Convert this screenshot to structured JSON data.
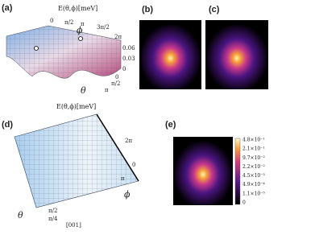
{
  "panel_a": {
    "label": "(a)",
    "title": "E(θ,ϕ)[meV]",
    "phi": "ϕ",
    "theta": "θ",
    "phi_ticks": [
      "0",
      "π/2",
      "π",
      "3π/2",
      "2π"
    ],
    "z_ticks": [
      "0.06",
      "0.03",
      "0"
    ],
    "theta_ticks": [
      "0",
      "π/2",
      "π"
    ]
  },
  "panel_b": {
    "label": "(b)"
  },
  "panel_c": {
    "label": "(c)"
  },
  "panel_d": {
    "label": "(d)",
    "title": "E(θ,ϕ)[meV]",
    "phi": "ϕ",
    "theta": "θ",
    "phi_ticks": [
      "0",
      "π",
      "2π"
    ],
    "theta_ticks": [
      "π/2",
      "π/4"
    ],
    "axis_note": "[001]"
  },
  "panel_e": {
    "label": "(e)",
    "colorbar_ticks": [
      "4.8×10⁻¹",
      "2.1×10⁻¹",
      "9.7×10⁻²",
      "2.2×10⁻²",
      "4.5×10⁻³",
      "4.9×10⁻⁴",
      "1.1×10⁻⁵",
      "0"
    ]
  }
}
